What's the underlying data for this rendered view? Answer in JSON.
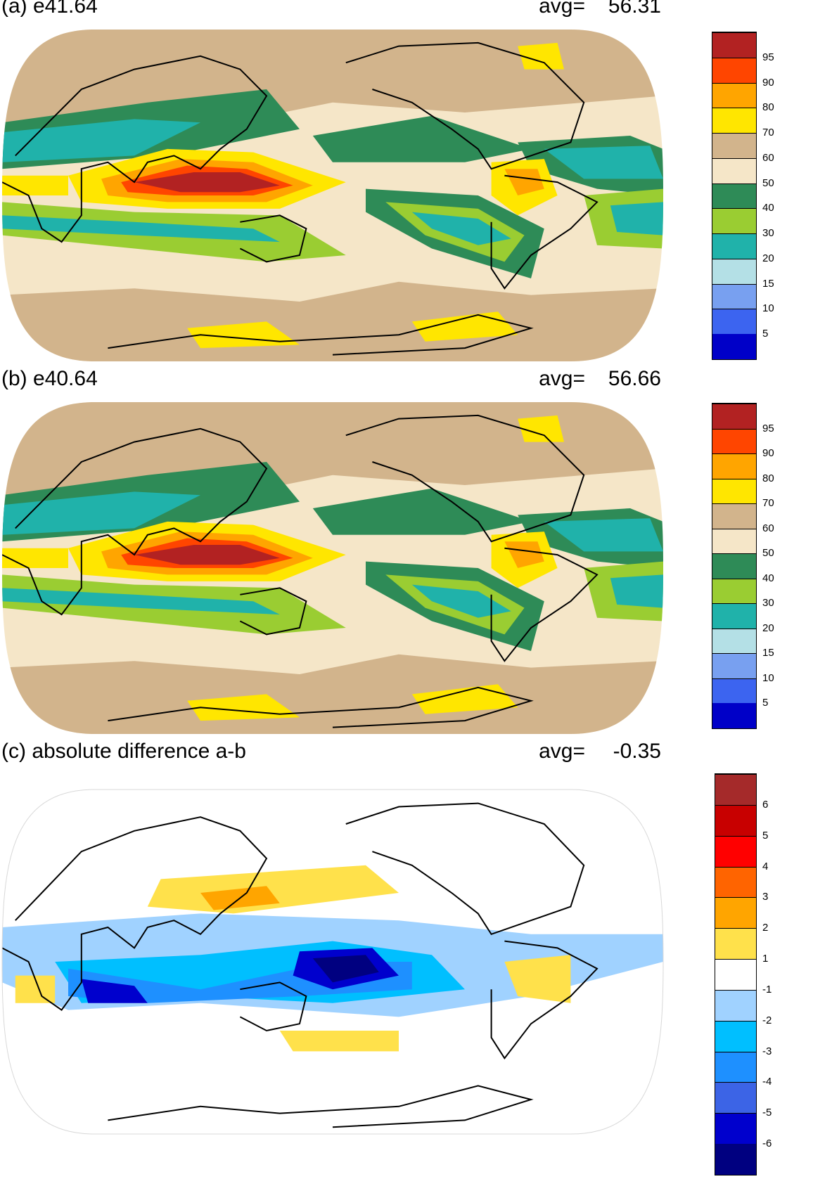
{
  "panels": [
    {
      "id": "a",
      "title": "(a) e41.64",
      "avg_label": "avg=",
      "avg_value": "56.31",
      "colors": [
        "#0000c8",
        "#3c64f0",
        "#78a0f0",
        "#b4e0e6",
        "#20b2aa",
        "#9acd32",
        "#2e8b57",
        "#f5e6c8",
        "#d2b48c",
        "#ffe600",
        "#ffa500",
        "#ff4500",
        "#b22222"
      ],
      "ticks": [
        "5",
        "10",
        "15",
        "20",
        "30",
        "40",
        "50",
        "60",
        "70",
        "80",
        "90",
        "95"
      ],
      "kind": "abs"
    },
    {
      "id": "b",
      "title": "(b) e40.64",
      "avg_label": "avg=",
      "avg_value": "56.66",
      "colors": [
        "#0000c8",
        "#3c64f0",
        "#78a0f0",
        "#b4e0e6",
        "#20b2aa",
        "#9acd32",
        "#2e8b57",
        "#f5e6c8",
        "#d2b48c",
        "#ffe600",
        "#ffa500",
        "#ff4500",
        "#b22222"
      ],
      "ticks": [
        "5",
        "10",
        "15",
        "20",
        "30",
        "40",
        "50",
        "60",
        "70",
        "80",
        "90",
        "95"
      ],
      "kind": "abs"
    },
    {
      "id": "c",
      "title": "(c) absolute difference a-b",
      "avg_label": "avg=",
      "avg_value": "-0.35",
      "colors": [
        "#000080",
        "#0000cd",
        "#3c64e6",
        "#1e90ff",
        "#00bfff",
        "#a0d2ff",
        "#ffffff",
        "#ffe14b",
        "#ffa500",
        "#ff6400",
        "#ff0000",
        "#c80000",
        "#a52a2a"
      ],
      "ticks": [
        "-6",
        "-5",
        "-4",
        "-3",
        "-2",
        "-1",
        "1",
        "2",
        "3",
        "4",
        "5",
        "6"
      ],
      "kind": "diff"
    }
  ]
}
